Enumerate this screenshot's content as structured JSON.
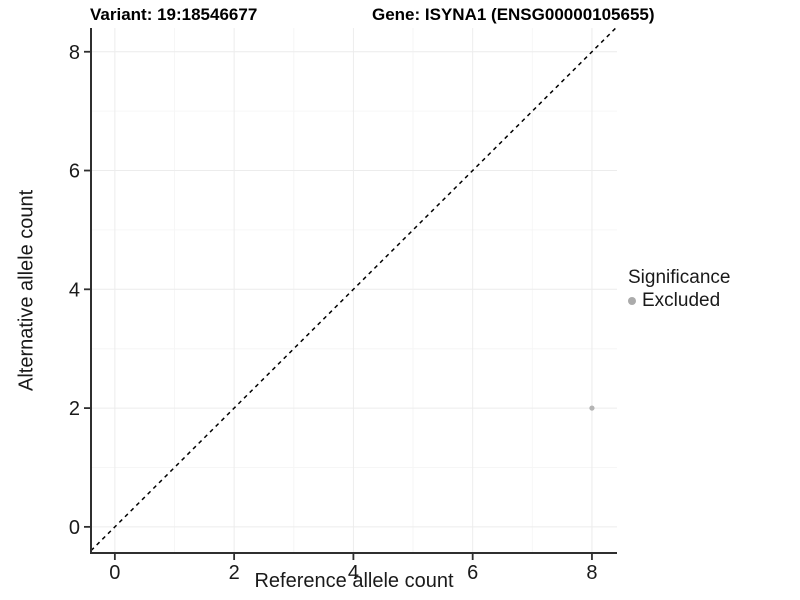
{
  "chart_data": {
    "type": "scatter",
    "title_left": "Variant: 19:18546677",
    "title_right": "Gene: ISYNA1 (ENSG00000105655)",
    "xlabel": "Reference allele count",
    "ylabel": "Alternative allele count",
    "xlim": [
      -0.4,
      8.42
    ],
    "ylim": [
      -0.44,
      8.4
    ],
    "x_ticks": [
      0,
      2,
      4,
      6,
      8
    ],
    "y_ticks": [
      0,
      2,
      4,
      6,
      8
    ],
    "x_minor_ticks": [
      1,
      3,
      5,
      7
    ],
    "y_minor_ticks": [
      1,
      3,
      5,
      7
    ],
    "grid": true,
    "identity_line": {
      "style": "dashed",
      "slope": 1,
      "intercept": 0,
      "from": -0.4,
      "to": 8.4,
      "color": "#000000"
    },
    "points": [
      {
        "x": 8,
        "y": 2,
        "significance": "Excluded"
      }
    ],
    "legend": {
      "position": "right",
      "title": "Significance",
      "entries": [
        {
          "label": "Excluded",
          "color": "#ababab"
        }
      ]
    },
    "colors": {
      "point": "#b4b4b4",
      "axis": "#2f2f2f",
      "grid_major": "#ececec",
      "grid_minor": "#f6f6f6",
      "tick_text": "#1a1a1a",
      "background": "#ffffff"
    }
  }
}
